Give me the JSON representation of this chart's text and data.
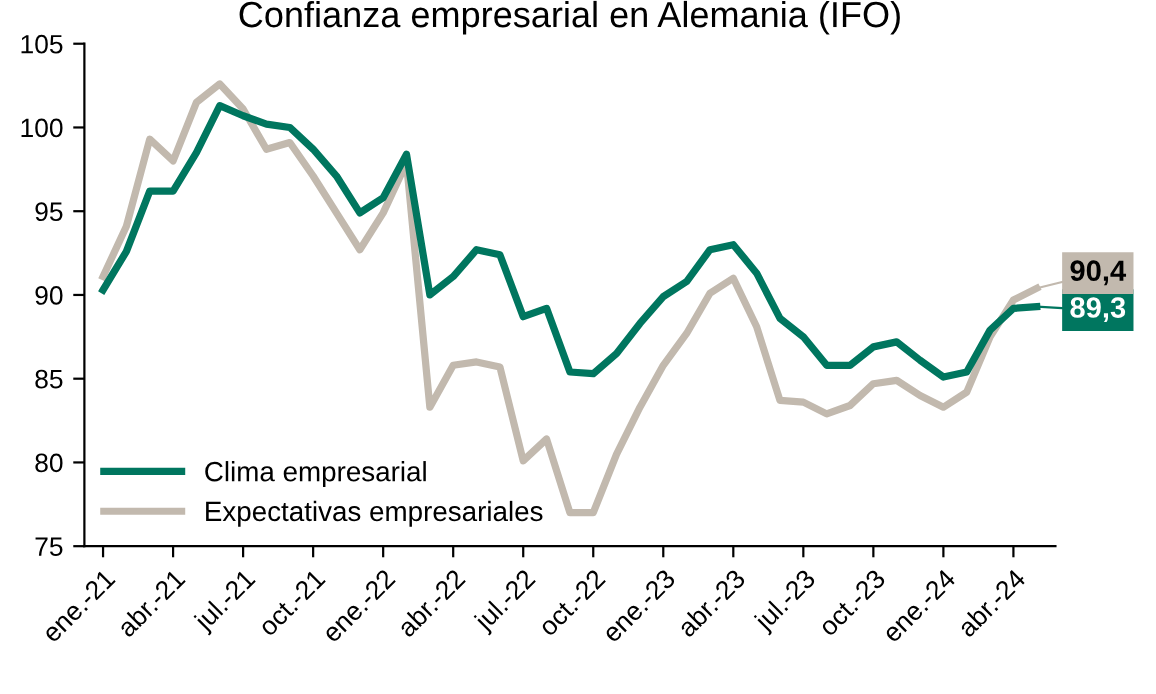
{
  "chart_data": {
    "type": "line",
    "title": "Confianza empresarial en Alemania (IFO)",
    "categories": [
      "ene.-21",
      null,
      null,
      "abr.-21",
      null,
      null,
      "jul.-21",
      null,
      null,
      "oct.-21",
      null,
      null,
      "ene.-22",
      null,
      null,
      "abr.-22",
      null,
      null,
      "jul.-22",
      null,
      null,
      "oct.-22",
      null,
      null,
      "ene.-23",
      null,
      null,
      "abr.-23",
      null,
      null,
      "jul.-23",
      null,
      null,
      "oct.-23",
      null,
      null,
      "ene.-24",
      null,
      null,
      "abr.-24",
      null
    ],
    "series": [
      {
        "name": "Clima empresarial",
        "color": "#00765f",
        "values": [
          90.3,
          92.6,
          96.2,
          96.2,
          98.5,
          101.3,
          100.7,
          100.2,
          100.0,
          98.7,
          97.1,
          94.9,
          95.8,
          98.4,
          90.0,
          91.1,
          92.7,
          92.4,
          88.7,
          89.2,
          85.4,
          85.3,
          86.5,
          88.3,
          89.9,
          90.8,
          92.7,
          93.0,
          91.3,
          88.6,
          87.5,
          85.8,
          85.8,
          86.9,
          87.2,
          86.1,
          85.1,
          85.4,
          87.9,
          89.2,
          89.3
        ],
        "value_labels": [
          null,
          null,
          null,
          null,
          null,
          null,
          null,
          null,
          null,
          null,
          null,
          null,
          null,
          null,
          null,
          null,
          null,
          null,
          null,
          null,
          null,
          null,
          null,
          null,
          null,
          null,
          null,
          null,
          null,
          null,
          null,
          null,
          null,
          null,
          null,
          null,
          null,
          null,
          null,
          null,
          "89,3"
        ]
      },
      {
        "name": "Expectativas empresariales",
        "color": "#c2b9ae",
        "values": [
          91.1,
          94.1,
          99.3,
          98.0,
          101.5,
          102.6,
          101.1,
          98.7,
          99.1,
          97.1,
          94.9,
          92.7,
          94.9,
          97.9,
          83.3,
          85.8,
          86.0,
          85.7,
          80.1,
          81.4,
          77.0,
          77.0,
          80.5,
          83.3,
          85.8,
          87.7,
          90.1,
          91.0,
          88.1,
          83.7,
          83.6,
          82.9,
          83.4,
          84.7,
          84.9,
          84.0,
          83.3,
          84.2,
          87.5,
          89.7,
          90.4
        ],
        "value_labels": [
          null,
          null,
          null,
          null,
          null,
          null,
          null,
          null,
          null,
          null,
          null,
          null,
          null,
          null,
          null,
          null,
          null,
          null,
          null,
          null,
          null,
          null,
          null,
          null,
          null,
          null,
          null,
          null,
          null,
          null,
          null,
          null,
          null,
          null,
          null,
          null,
          null,
          null,
          null,
          null,
          "90,4"
        ]
      }
    ],
    "ylim": [
      75,
      105
    ],
    "yticks": [
      75,
      80,
      85,
      90,
      95,
      100,
      105
    ],
    "grid": false,
    "legend": "bottom left",
    "marker": "none",
    "line_style": "solid"
  }
}
